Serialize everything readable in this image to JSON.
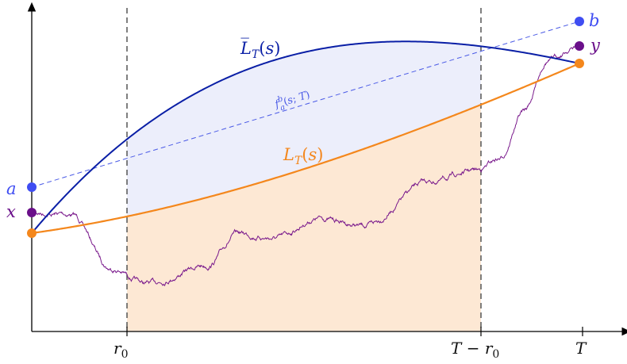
{
  "colors": {
    "upper_curve": "#0a1fa6",
    "lower_curve": "#f4871c",
    "path": "#7a1a8c",
    "blue_point": "#3f4df2",
    "purple_point": "#6a0f8a",
    "orange_point": "#f4871c",
    "blue_fill": "#eceefb",
    "orange_fill": "#fde8d4",
    "dashed_line": "#4a5ae6",
    "axis": "#000000",
    "vline": "#555555"
  },
  "labels": {
    "upper": "L̅T(s)",
    "lower": "LT(s)",
    "dashed": "fab(s;T)",
    "a": "a",
    "b": "b",
    "x": "x",
    "y": "y"
  },
  "ticks": {
    "r0": "r0",
    "t_minus_r0": "T − r0",
    "t": "T"
  },
  "icons": [
    "point-a-icon",
    "point-b-icon",
    "point-x-icon",
    "point-y-icon",
    "endpoint-left-icon",
    "endpoint-right-icon"
  ]
}
